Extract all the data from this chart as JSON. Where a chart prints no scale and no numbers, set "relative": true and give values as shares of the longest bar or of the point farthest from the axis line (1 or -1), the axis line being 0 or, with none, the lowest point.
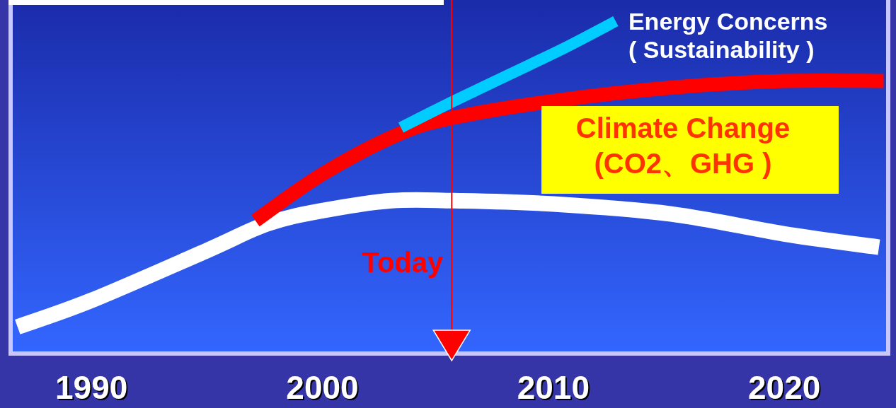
{
  "chart_data": {
    "type": "line",
    "relative": true,
    "x": [
      1986.8,
      1990,
      1995,
      1997.6,
      2000,
      2003,
      2005.7,
      2010,
      2015.1,
      2020,
      2024.1
    ],
    "xlim": [
      1986.5,
      2024.5
    ],
    "xticks": [
      1990,
      2000,
      2010,
      2020
    ],
    "series": [
      {
        "color": "#ffffff",
        "values": [
          0.08,
          0.16,
          0.31,
          0.39,
          0.43,
          0.46,
          0.46,
          0.45,
          0.42,
          0.36,
          0.32
        ]
      },
      {
        "name": "Climate Change\n(CO2、GHG )",
        "color": "#ff0000",
        "x": [
          1997.1,
          2000,
          2003.3,
          2005.7,
          2010,
          2015.1,
          2020,
          2024.3
        ],
        "values": [
          0.4,
          0.54,
          0.66,
          0.71,
          0.76,
          0.8,
          0.82,
          0.82
        ]
      },
      {
        "name": "Energy Concerns\n( Sustainability )",
        "color": "#00ccff",
        "x": [
          2003.4,
          2005.7,
          2008.1,
          2010.5,
          2012.7
        ],
        "values": [
          0.68,
          0.76,
          0.84,
          0.92,
          1
        ]
      }
    ],
    "ref_lines": [
      {
        "axis": "x",
        "value": 2005.6,
        "label": "Today",
        "color": "#ff0000"
      }
    ],
    "line_style": "solid"
  }
}
